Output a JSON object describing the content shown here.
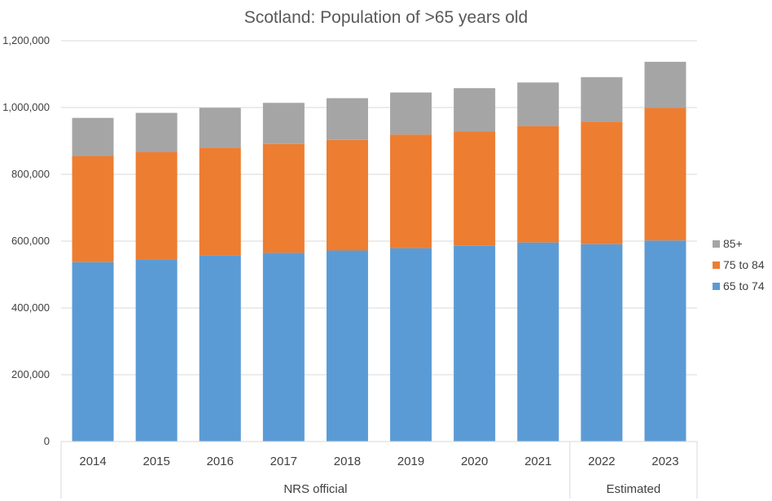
{
  "chart_data": {
    "type": "bar",
    "stacked": true,
    "title": "Scotland: Population of >65 years old",
    "xlabel": "",
    "ylabel": "",
    "ylim": [
      0,
      1200000
    ],
    "y_ticks": [
      "0",
      "200,000",
      "400,000",
      "600,000",
      "800,000",
      "1,000,000",
      "1,200,000"
    ],
    "grid": true,
    "legend_position": "right",
    "categories": [
      "2014",
      "2015",
      "2016",
      "2017",
      "2018",
      "2019",
      "2020",
      "2021",
      "2022",
      "2023"
    ],
    "groups": [
      {
        "label": "NRS official",
        "count": 8
      },
      {
        "label": "Estimated",
        "count": 2
      }
    ],
    "series": [
      {
        "name": "65 to 74",
        "color": "#5b9bd5",
        "values": [
          537000,
          546000,
          557000,
          565000,
          572000,
          579000,
          586000,
          596000,
          591000,
          602000
        ]
      },
      {
        "name": "75 to 84",
        "color": "#ed7d31",
        "values": [
          318000,
          321000,
          323000,
          326000,
          331000,
          340000,
          343000,
          348000,
          367000,
          397000
        ]
      },
      {
        "name": "85+",
        "color": "#a5a5a5",
        "values": [
          114000,
          117000,
          119000,
          123000,
          125000,
          126000,
          129000,
          131000,
          133000,
          138000
        ]
      }
    ]
  }
}
